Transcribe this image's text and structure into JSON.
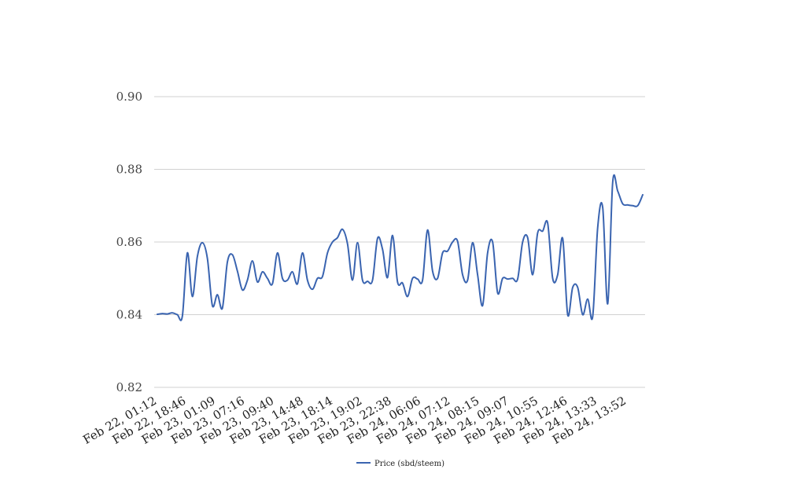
{
  "chart_data": {
    "type": "line",
    "title": "",
    "xlabel": "",
    "ylabel": "",
    "ylim": [
      0.82,
      0.9
    ],
    "yticks": [
      "0.82",
      "0.84",
      "0.86",
      "0.88",
      "0.90"
    ],
    "ytick_values": [
      0.82,
      0.84,
      0.86,
      0.88,
      0.9
    ],
    "grid": "horizontal",
    "legend": "bottom-center",
    "xtick_labels": [
      "Feb 22, 01:12",
      "Feb 22, 18:46",
      "Feb 23, 01:09",
      "Feb 23, 07:16",
      "Feb 23, 09:40",
      "Feb 23, 14:48",
      "Feb 23, 18:14",
      "Feb 23, 19:02",
      "Feb 23, 22:38",
      "Feb 24, 06:06",
      "Feb 24, 07:12",
      "Feb 24, 08:15",
      "Feb 24, 09:07",
      "Feb 24, 10:55",
      "Feb 24, 12:46",
      "Feb 24, 13:33",
      "Feb 24, 13:52"
    ],
    "series": [
      {
        "name": "Price (sbd/steem)",
        "color": "#3a64b0",
        "values": [
          0.8401,
          0.8403,
          0.8402,
          0.8405,
          0.84,
          0.8396,
          0.857,
          0.845,
          0.856,
          0.8598,
          0.8555,
          0.8425,
          0.8455,
          0.8418,
          0.8545,
          0.8565,
          0.852,
          0.8468,
          0.8495,
          0.8548,
          0.849,
          0.8518,
          0.85,
          0.8485,
          0.857,
          0.85,
          0.8495,
          0.8518,
          0.8485,
          0.857,
          0.8495,
          0.847,
          0.85,
          0.8505,
          0.857,
          0.86,
          0.8612,
          0.8635,
          0.8595,
          0.8495,
          0.8598,
          0.8495,
          0.8492,
          0.8495,
          0.861,
          0.858,
          0.8502,
          0.8618,
          0.849,
          0.8487,
          0.845,
          0.85,
          0.8498,
          0.8495,
          0.8633,
          0.852,
          0.85,
          0.857,
          0.8575,
          0.86,
          0.8602,
          0.851,
          0.8495,
          0.8598,
          0.851,
          0.8425,
          0.857,
          0.86,
          0.846,
          0.85,
          0.8498,
          0.85,
          0.8498,
          0.86,
          0.8612,
          0.851,
          0.8625,
          0.863,
          0.8652,
          0.85,
          0.851,
          0.861,
          0.84,
          0.8475,
          0.8475,
          0.84,
          0.8443,
          0.8395,
          0.864,
          0.8695,
          0.843,
          0.8765,
          0.874,
          0.8705,
          0.8702,
          0.87,
          0.87,
          0.873
        ]
      }
    ]
  }
}
